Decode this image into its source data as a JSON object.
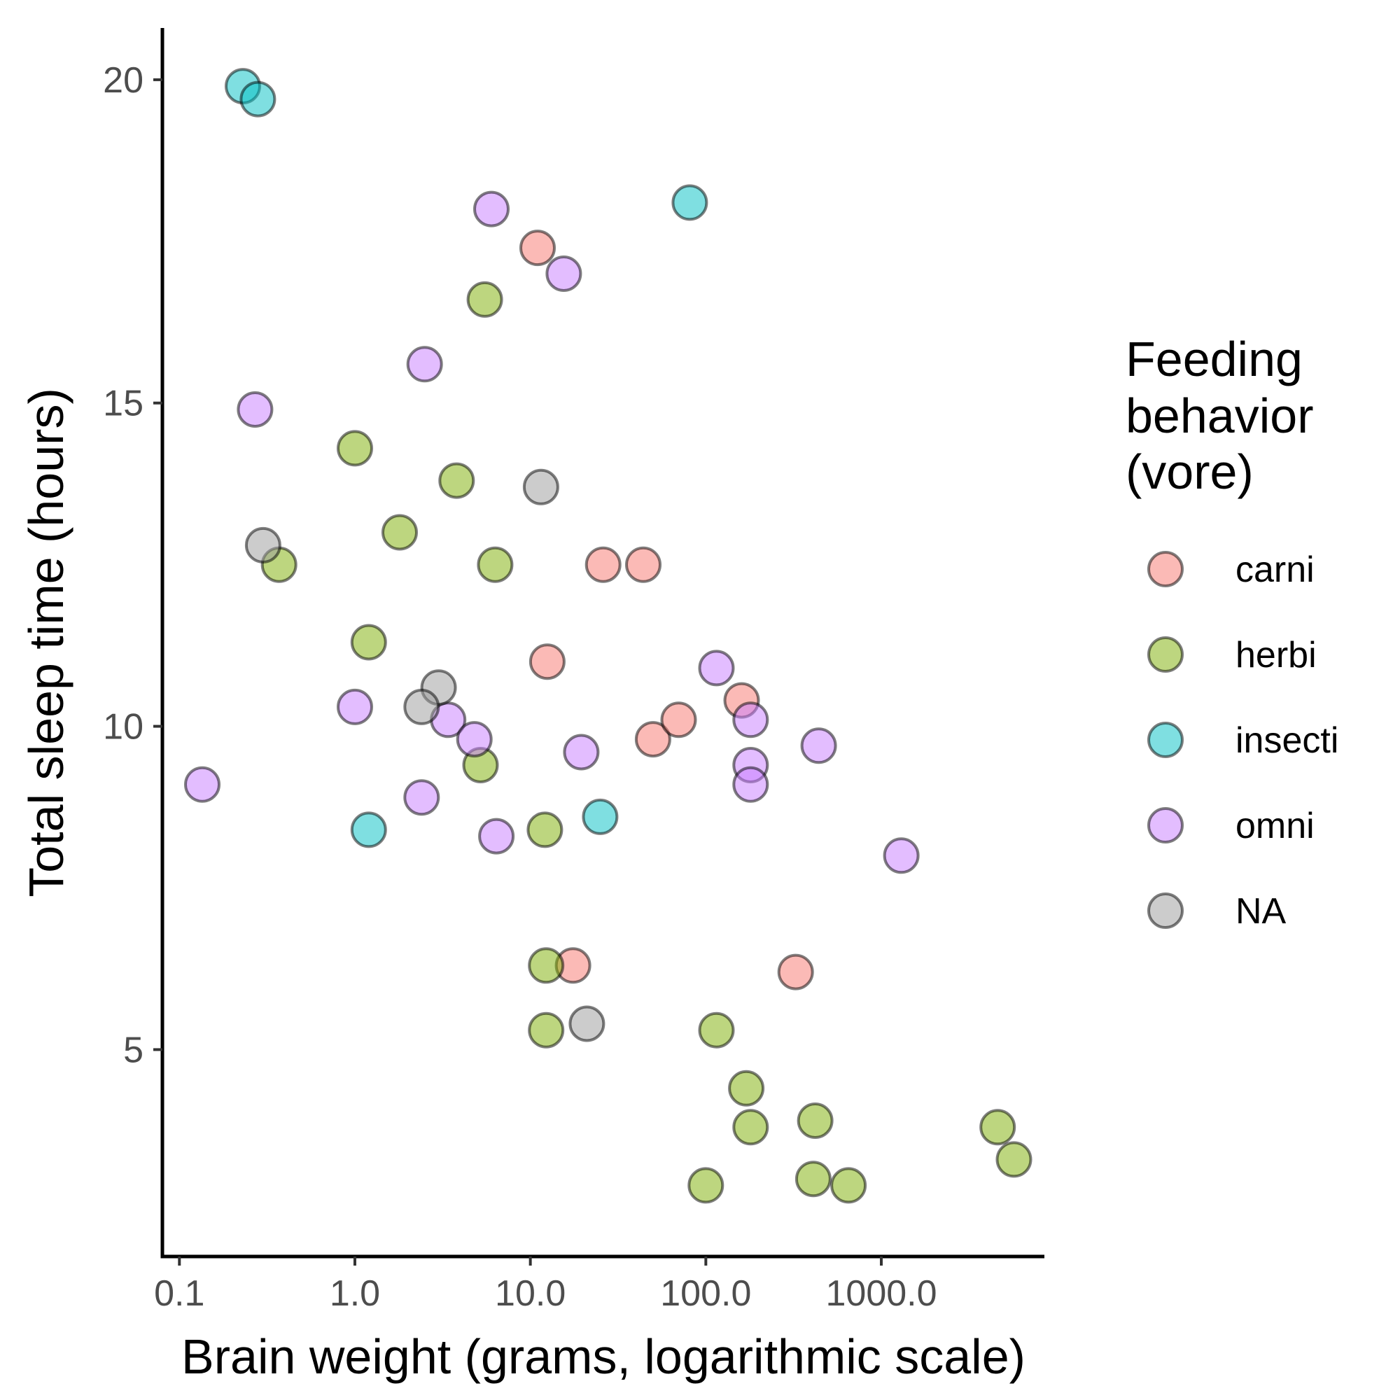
{
  "chart_data": {
    "type": "scatter",
    "xlabel": "Brain weight (grams, logarithmic scale)",
    "ylabel": "Total sleep time (hours)",
    "x_scale": "log10",
    "xlim": [
      0.08,
      8500
    ],
    "ylim": [
      1.8,
      20.8
    ],
    "x_ticks": [
      0.1,
      1,
      10,
      100,
      1000
    ],
    "x_tick_labels": [
      "0.1",
      "1.0",
      "10.0",
      "100.0",
      "1000.0"
    ],
    "y_ticks": [
      5,
      10,
      15,
      20
    ],
    "y_tick_labels": [
      "5",
      "10",
      "15",
      "20"
    ],
    "grid": false,
    "legend": {
      "title_lines": [
        "Feeding",
        "behavior",
        "(vore)"
      ],
      "placement": "right"
    },
    "series": [
      {
        "name": "carni",
        "color": "#F8766D",
        "points": [
          [
            11,
            17.4
          ],
          [
            26,
            12.5
          ],
          [
            44,
            12.5
          ],
          [
            12.5,
            11
          ],
          [
            50,
            9.8
          ],
          [
            70,
            10.1
          ],
          [
            160,
            10.4
          ],
          [
            17.5,
            6.3
          ],
          [
            325,
            6.2
          ]
        ]
      },
      {
        "name": "herbi",
        "color": "#7CAE00",
        "points": [
          [
            5.5,
            16.6
          ],
          [
            1.0,
            14.3
          ],
          [
            3.8,
            13.8
          ],
          [
            1.8,
            13.0
          ],
          [
            0.37,
            12.5
          ],
          [
            6.3,
            12.5
          ],
          [
            1.2,
            11.3
          ],
          [
            5.2,
            9.4
          ],
          [
            12.1,
            8.4
          ],
          [
            12.3,
            6.3
          ],
          [
            12.3,
            5.3
          ],
          [
            115,
            5.3
          ],
          [
            170,
            4.4
          ],
          [
            420,
            3.9
          ],
          [
            180,
            3.8
          ],
          [
            4600,
            3.8
          ],
          [
            100,
            2.9
          ],
          [
            410,
            3.0
          ],
          [
            650,
            2.9
          ],
          [
            5700,
            3.3
          ]
        ]
      },
      {
        "name": "insecti",
        "color": "#00BFC4",
        "points": [
          [
            0.23,
            19.9
          ],
          [
            0.28,
            19.7
          ],
          [
            81,
            18.1
          ],
          [
            1.2,
            8.4
          ],
          [
            25,
            8.6
          ]
        ]
      },
      {
        "name": "omni",
        "color": "#C77CFF",
        "points": [
          [
            6.0,
            18.0
          ],
          [
            15.5,
            17.0
          ],
          [
            2.5,
            15.6
          ],
          [
            0.27,
            14.9
          ],
          [
            1.0,
            10.3
          ],
          [
            3.4,
            10.1
          ],
          [
            4.8,
            9.8
          ],
          [
            0.135,
            9.1
          ],
          [
            2.4,
            8.9
          ],
          [
            6.4,
            8.3
          ],
          [
            19.5,
            9.6
          ],
          [
            115,
            10.9
          ],
          [
            180,
            10.1
          ],
          [
            180,
            9.4
          ],
          [
            180,
            9.1
          ],
          [
            440,
            9.7
          ],
          [
            1300,
            8.0
          ]
        ]
      },
      {
        "name": "NA",
        "color": "#999999",
        "points": [
          [
            0.3,
            12.8
          ],
          [
            11.5,
            13.7
          ],
          [
            3.0,
            10.6
          ],
          [
            2.4,
            10.3
          ],
          [
            21,
            5.4
          ]
        ]
      }
    ]
  }
}
